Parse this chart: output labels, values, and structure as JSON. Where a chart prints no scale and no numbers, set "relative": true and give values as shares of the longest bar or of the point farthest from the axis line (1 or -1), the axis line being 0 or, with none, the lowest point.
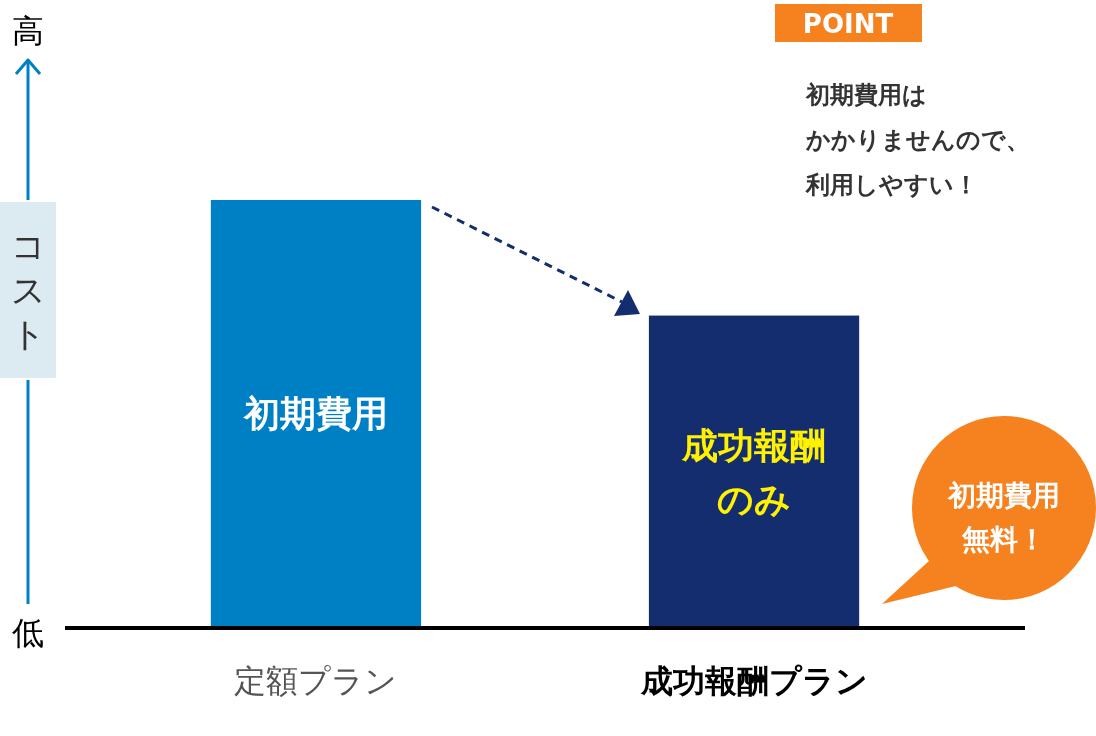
{
  "chart_data": {
    "type": "bar",
    "relative": true,
    "categories": [
      "定額プラン",
      "成功報酬プラン"
    ],
    "values": [
      1,
      0.73
    ],
    "colors": [
      "#0080c4",
      "#142d6e"
    ],
    "ylabel": "コスト",
    "annotations": [
      "高",
      "低",
      "初期費用",
      "成功報酬",
      "のみ",
      "POINT",
      "初期費用は",
      "かかりませんので、",
      "利用しやすい！",
      "初期費用",
      "無料！"
    ]
  }
}
